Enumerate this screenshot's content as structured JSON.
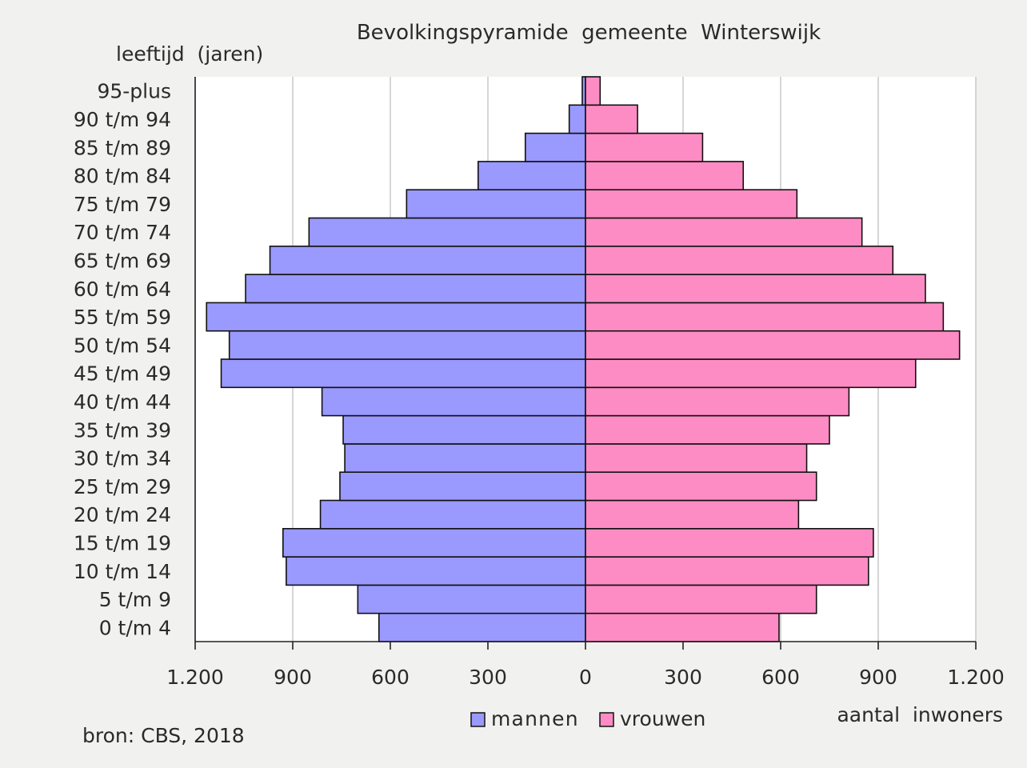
{
  "chart_data": {
    "type": "bar",
    "orientation": "horizontal",
    "title": "Bevolkingspyramide  gemeente  Winterswijk",
    "ylabel": "leeftijd  (jaren)",
    "xlabel": "aantal  inwoners",
    "source": "bron: CBS, 2018",
    "categories": [
      "0 t/m 4",
      "5 t/m 9",
      "10 t/m 14",
      "15 t/m 19",
      "20 t/m 24",
      "25 t/m 29",
      "30 t/m 34",
      "35 t/m 39",
      "40 t/m 44",
      "45 t/m 49",
      "50 t/m 54",
      "55 t/m 59",
      "60 t/m 64",
      "65 t/m 69",
      "70 t/m 74",
      "75 t/m 79",
      "80 t/m 84",
      "85 t/m 89",
      "90 t/m 94",
      "95-plus"
    ],
    "series": [
      {
        "name": "mannen",
        "color": "#9a99fd",
        "values": [
          635,
          700,
          920,
          930,
          815,
          755,
          740,
          745,
          810,
          1120,
          1095,
          1165,
          1045,
          970,
          850,
          550,
          330,
          185,
          50,
          10
        ]
      },
      {
        "name": "vrouwen",
        "color": "#fe8cc4",
        "values": [
          595,
          710,
          870,
          885,
          655,
          710,
          680,
          750,
          810,
          1015,
          1150,
          1100,
          1045,
          945,
          850,
          650,
          485,
          360,
          160,
          45
        ]
      }
    ],
    "xlim": [
      -1200,
      1200
    ],
    "xticks": [
      -1200,
      -900,
      -600,
      -300,
      0,
      300,
      600,
      900,
      1200
    ],
    "xtick_labels": [
      "1.200",
      "900",
      "600",
      "300",
      "0",
      "300",
      "600",
      "900",
      "1.200"
    ],
    "grid": true,
    "legend_position": "bottom-center"
  }
}
